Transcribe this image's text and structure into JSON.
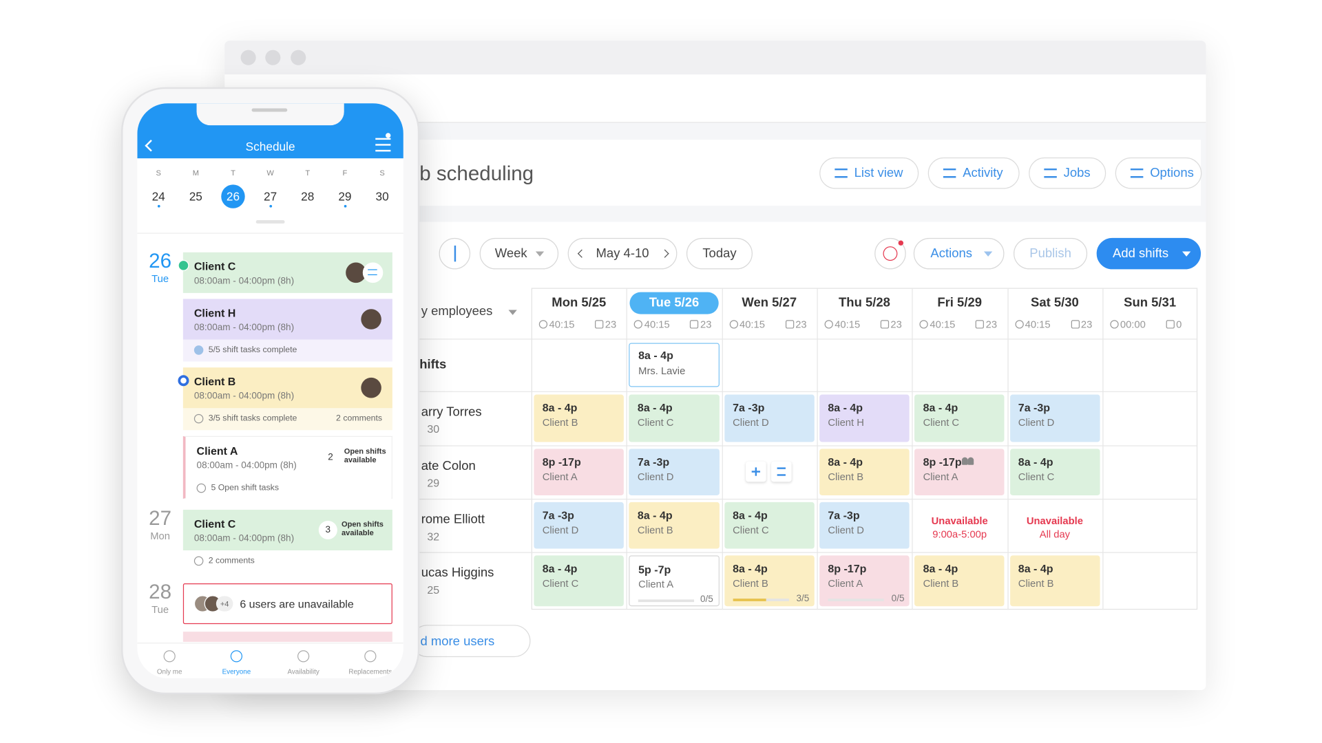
{
  "desktop": {
    "title": "b scheduling",
    "header_buttons": [
      "List view",
      "Activity",
      "Jobs",
      "Options"
    ],
    "toolbar": {
      "view": "Week",
      "range": "May 4-10",
      "today": "Today",
      "actions": "Actions",
      "publish": "Publish",
      "add": "Add shifts"
    },
    "filter": "y employees",
    "columns": [
      {
        "day": "Mon 5/25",
        "hours": "40:15",
        "shifts": "23"
      },
      {
        "day": "Tue 5/26",
        "hours": "40:15",
        "shifts": "23",
        "current": true
      },
      {
        "day": "Wen 5/27",
        "hours": "40:15",
        "shifts": "23"
      },
      {
        "day": "Thu 5/28",
        "hours": "40:15",
        "shifts": "23"
      },
      {
        "day": "Fri 5/29",
        "hours": "40:15",
        "shifts": "23"
      },
      {
        "day": "Sat 5/30",
        "hours": "40:15",
        "shifts": "23"
      },
      {
        "day": "Sun 5/31",
        "hours": "00:00",
        "shifts": "0"
      }
    ],
    "open_shifts": {
      "label": "hifts",
      "cells": [
        null,
        {
          "time": "8a - 4p",
          "client": "Mrs. Lavie",
          "color": "#ffffff"
        },
        null,
        null,
        null,
        null,
        null
      ]
    },
    "rows": [
      {
        "name": "arry Torres",
        "count": "30",
        "cells": [
          {
            "time": "8a - 4p",
            "client": "Client B",
            "color": "#fbeec3"
          },
          {
            "time": "8a - 4p",
            "client": "Client C",
            "color": "#dcf1de"
          },
          {
            "time": "7a -3p",
            "client": "Client D",
            "color": "#d4e8f8"
          },
          {
            "time": "8a - 4p",
            "client": "Client H",
            "color": "#e3dcf8"
          },
          {
            "time": "8a - 4p",
            "client": "Client C",
            "color": "#dcf1de"
          },
          {
            "time": "7a -3p",
            "client": "Client D",
            "color": "#d4e8f8"
          },
          null
        ]
      },
      {
        "name": "ate Colon",
        "count": "29",
        "cells": [
          {
            "time": "8p -17p",
            "client": "Client A",
            "color": "#f8dde3"
          },
          {
            "time": "7a -3p",
            "client": "Client D",
            "color": "#d4e8f8"
          },
          null,
          {
            "time": "8a - 4p",
            "client": "Client B",
            "color": "#fbeec3"
          },
          {
            "time": "8p -17p",
            "client": "Client A",
            "color": "#f8dde3",
            "group": true
          },
          {
            "time": "8a - 4p",
            "client": "Client C",
            "color": "#dcf1de"
          },
          null
        ]
      },
      {
        "name": "rome Elliott",
        "count": "32",
        "cells": [
          {
            "time": "7a -3p",
            "client": "Client D",
            "color": "#d4e8f8"
          },
          {
            "time": "8a - 4p",
            "client": "Client B",
            "color": "#fbeec3"
          },
          {
            "time": "8a - 4p",
            "client": "Client C",
            "color": "#dcf1de"
          },
          {
            "time": "7a -3p",
            "client": "Client D",
            "color": "#d4e8f8"
          },
          {
            "status": "Unavailable",
            "detail": "9:00a-5:00p"
          },
          {
            "status": "Unavailable",
            "detail": "All day"
          },
          null
        ]
      },
      {
        "name": "ucas Higgins",
        "count": "25",
        "cells": [
          {
            "time": "8a - 4p",
            "client": "Client C",
            "color": "#dcf1de"
          },
          {
            "time": "5p -7p",
            "client": "Client A",
            "color": "#ffffff",
            "progress": "0/5"
          },
          {
            "time": "8a - 4p",
            "client": "Client B",
            "color": "#fbeec3",
            "progress": "3/5"
          },
          {
            "time": "8p -17p",
            "client": "Client A",
            "color": "#f8dde3",
            "progress": "0/5"
          },
          {
            "time": "8a - 4p",
            "client": "Client B",
            "color": "#fbeec3"
          },
          {
            "time": "8a - 4p",
            "client": "Client B",
            "color": "#fbeec3"
          },
          null
        ]
      }
    ],
    "add_users": "d more users"
  },
  "phone": {
    "title": "Schedule",
    "weekdays": [
      "S",
      "M",
      "T",
      "W",
      "T",
      "F",
      "S"
    ],
    "dates": [
      "24",
      "25",
      "26",
      "27",
      "28",
      "29",
      "30"
    ],
    "dots": [
      true,
      false,
      false,
      true,
      false,
      true,
      false
    ],
    "selected_index": 2,
    "days": [
      {
        "date": "26",
        "weekday": "Tue",
        "today": true,
        "cards": [
          {
            "client": "Client C",
            "time": "08:00am - 04:00pm (8h)",
            "color": "#dcf1de",
            "status": "check",
            "swap": true
          },
          {
            "client": "Client H",
            "time": "08:00am - 04:00pm (8h)",
            "color": "#e3dcf8",
            "footer": "5/5 shift tasks complete"
          },
          {
            "client": "Client B",
            "time": "08:00am - 04:00pm (8h)",
            "color": "#fbeec3",
            "status": "active",
            "footer": "3/5 shift tasks complete",
            "footer_note": "2 comments"
          },
          {
            "client": "Client A",
            "time": "08:00am - 04:00pm (8h)",
            "color": "#ffffff",
            "badge": "2",
            "badge_note": "Open shifts available",
            "footer": "5 Open shift tasks"
          }
        ]
      },
      {
        "date": "27",
        "weekday": "Mon",
        "cards": [
          {
            "client": "Client C",
            "time": "08:00am - 04:00pm (8h)",
            "color": "#dcf1de",
            "badge": "3",
            "badge_note": "Open shifts available",
            "footer": "2 comments"
          }
        ]
      },
      {
        "date": "28",
        "weekday": "Tue",
        "cards": [
          {
            "extra": "+4",
            "text": "6 users are unavailable"
          }
        ]
      }
    ],
    "tabs": [
      "Only me",
      "Everyone",
      "Availability",
      "Replacements"
    ],
    "active_tab": 1
  }
}
